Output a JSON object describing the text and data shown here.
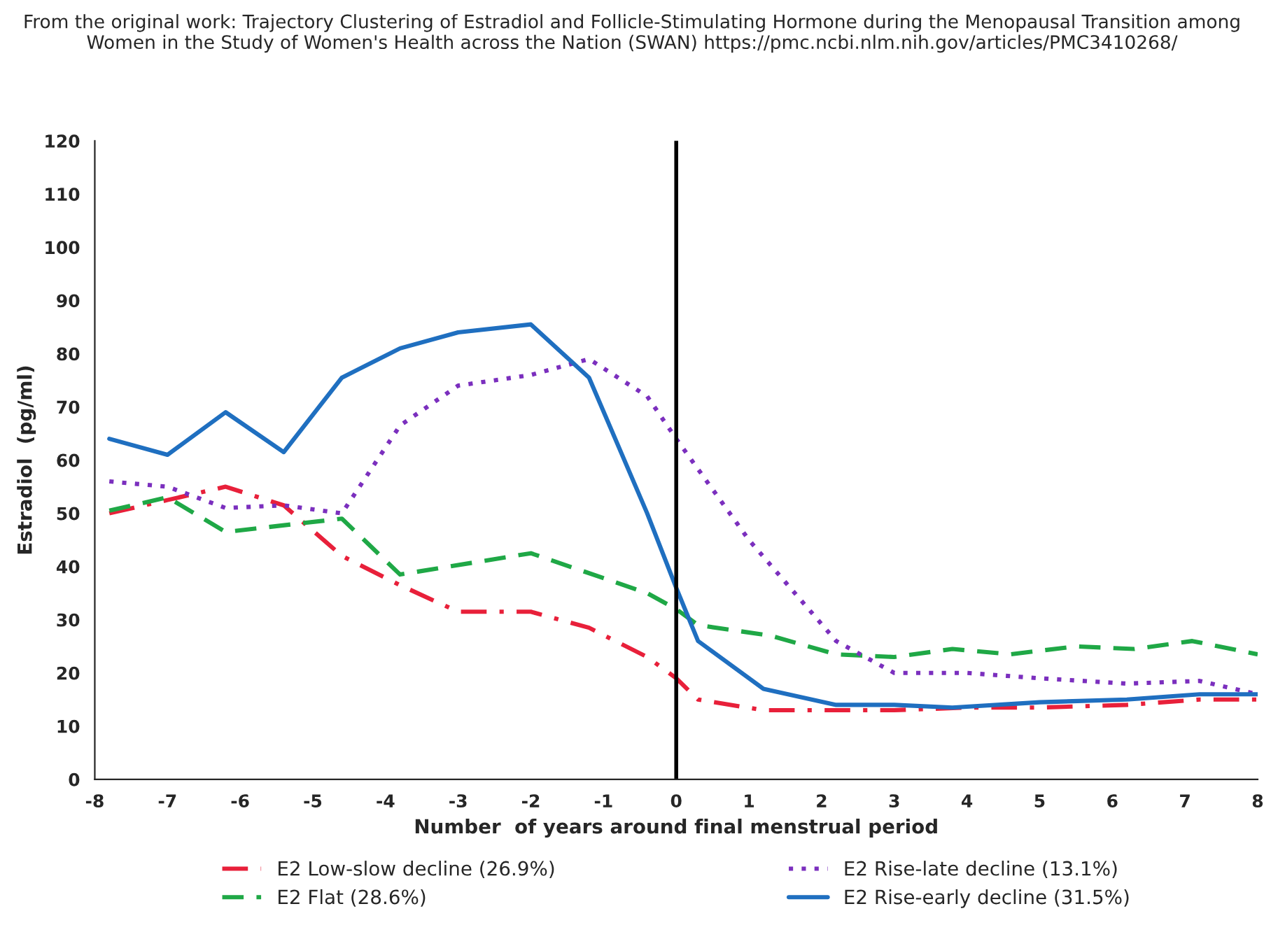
{
  "chart_data": {
    "type": "line",
    "title": "From the original work: Trajectory Clustering of Estradiol and Follicle-Stimulating Hormone during the Menopausal Transition among Women in the Study of Women's Health across the Nation (SWAN) https://pmc.ncbi.nlm.nih.gov/articles/PMC3410268/",
    "xlabel": "Number  of years around final menstrual period",
    "ylabel": "Estradiol  (pg/ml)",
    "xlim": [
      -8,
      8
    ],
    "xticks": [
      -8,
      -7,
      -6,
      -5,
      -4,
      -3,
      -2,
      -1,
      0,
      1,
      2,
      3,
      4,
      5,
      6,
      7,
      8
    ],
    "ylim": [
      0,
      120
    ],
    "yticks": [
      0,
      10,
      20,
      30,
      40,
      50,
      60,
      70,
      80,
      90,
      100,
      110,
      120
    ],
    "grid": false,
    "legend": "bottom",
    "ref_lines": [
      {
        "axis": "x",
        "value": 0,
        "color": "#000000",
        "line_style": "solid"
      }
    ],
    "series": [
      {
        "name": "E2 Low-slow decline (26.9%)",
        "color": "#e8203a",
        "line_style": "dashdot",
        "x": [
          -7.8,
          -7,
          -6.2,
          -5.4,
          -4.6,
          -3.8,
          -3,
          -2,
          -1.2,
          -0.4,
          0,
          0.3,
          1.2,
          2.2,
          3,
          4,
          5,
          6.2,
          7.2,
          8
        ],
        "values": [
          50,
          52.5,
          55,
          51.5,
          42,
          36.5,
          31.5,
          31.5,
          28.5,
          23,
          19,
          15,
          13,
          13,
          13,
          13.5,
          13.5,
          14,
          15,
          15
        ]
      },
      {
        "name": "E2 Flat (28.6%)",
        "color": "#1fa846",
        "line_style": "dashed",
        "x": [
          -7.8,
          -7,
          -6.2,
          -4.6,
          -3.8,
          -2,
          -0.4,
          0,
          0.3,
          1.3,
          2.2,
          3,
          3.8,
          4.6,
          5.5,
          6.3,
          7.1,
          8
        ],
        "values": [
          50.5,
          53,
          46.5,
          49,
          38.5,
          42.5,
          35,
          32,
          29,
          27,
          23.5,
          23,
          24.5,
          23.5,
          25,
          24.5,
          26,
          23.5
        ]
      },
      {
        "name": "E2 Rise-late decline (13.1%)",
        "color": "#7b2fbe",
        "line_style": "dotted",
        "x": [
          -7.8,
          -7,
          -6.2,
          -5.4,
          -4.6,
          -3.8,
          -3,
          -2,
          -1.2,
          -0.4,
          0,
          1,
          2.2,
          3,
          4,
          5,
          6.2,
          7.2,
          8
        ],
        "values": [
          56,
          55,
          51,
          51.5,
          50,
          66.5,
          74,
          76,
          79,
          72,
          64,
          45,
          26,
          20,
          20,
          19,
          18,
          18.5,
          16
        ]
      },
      {
        "name": "E2 Rise-early decline (31.5%)",
        "color": "#1f6fc0",
        "line_style": "solid",
        "x": [
          -7.8,
          -7,
          -6.2,
          -5.4,
          -4.6,
          -3.8,
          -3,
          -2,
          -1.2,
          -0.4,
          0,
          0.3,
          1.2,
          2.2,
          3,
          3.8,
          5,
          6.2,
          7.2,
          8
        ],
        "values": [
          64,
          61,
          69,
          61.5,
          75.5,
          81,
          84,
          85.5,
          75.5,
          50,
          36,
          26,
          17,
          14,
          14,
          13.5,
          14.5,
          15,
          16,
          16
        ]
      }
    ]
  }
}
